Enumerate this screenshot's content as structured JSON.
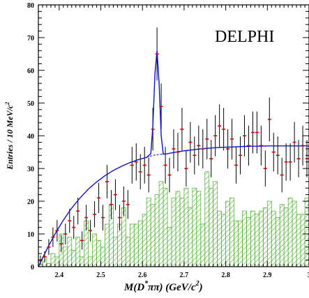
{
  "chart_data": {
    "type": "histogram",
    "experiment_label": "DELPHI",
    "ylabel_main": "Entries / 10 MeV/c",
    "ylabel_sup": "2",
    "xlabel_main": "M(D",
    "xlabel_star": "*",
    "xlabel_tail": "ππ)  (GeV/c",
    "xlabel_sup": "2",
    "xlabel_close": ")",
    "xlim": [
      2.35,
      3.0
    ],
    "ylim": [
      0,
      80
    ],
    "x_tick_labels": [
      "2.4",
      "2.5",
      "2.6",
      "2.7",
      "2.8",
      "2.9",
      "3"
    ],
    "y_tick_labels": [
      "0",
      "10",
      "20",
      "30",
      "40",
      "50",
      "60",
      "70",
      "80"
    ],
    "bin_width": 0.01,
    "data_points": {
      "name": "data",
      "x": [
        2.355,
        2.365,
        2.375,
        2.385,
        2.395,
        2.405,
        2.415,
        2.425,
        2.435,
        2.445,
        2.455,
        2.465,
        2.475,
        2.485,
        2.495,
        2.505,
        2.515,
        2.525,
        2.535,
        2.545,
        2.555,
        2.565,
        2.575,
        2.585,
        2.595,
        2.605,
        2.615,
        2.625,
        2.635,
        2.645,
        2.655,
        2.665,
        2.675,
        2.685,
        2.695,
        2.705,
        2.715,
        2.725,
        2.735,
        2.745,
        2.755,
        2.765,
        2.775,
        2.785,
        2.795,
        2.805,
        2.815,
        2.825,
        2.835,
        2.845,
        2.855,
        2.865,
        2.875,
        2.885,
        2.895,
        2.905,
        2.915,
        2.925,
        2.935,
        2.945,
        2.955,
        2.965,
        2.975,
        2.985,
        2.995
      ],
      "y": [
        2,
        3,
        6,
        9,
        11,
        7,
        10,
        14,
        12,
        17,
        8,
        15,
        11,
        16,
        21,
        15,
        26,
        19,
        22,
        15,
        20,
        19,
        31,
        32,
        29,
        31,
        28,
        42,
        65,
        49,
        31,
        28,
        36,
        35,
        42,
        30,
        38,
        34,
        37,
        36,
        39,
        33,
        40,
        43,
        42,
        36,
        39,
        31,
        34,
        40,
        37,
        41,
        41,
        37,
        30,
        45,
        35,
        34,
        28,
        32,
        32,
        38,
        33,
        37,
        33
      ],
      "errors": [
        1.4,
        1.7,
        2.4,
        3.0,
        3.3,
        2.6,
        3.2,
        3.7,
        3.5,
        4.1,
        2.8,
        3.9,
        3.3,
        4.0,
        4.6,
        3.9,
        5.1,
        4.4,
        4.7,
        3.9,
        4.5,
        4.4,
        5.6,
        5.7,
        5.4,
        5.6,
        5.3,
        6.5,
        8.1,
        7.0,
        5.6,
        5.3,
        6.0,
        5.9,
        6.5,
        5.5,
        6.2,
        5.8,
        6.1,
        6.0,
        6.2,
        5.7,
        6.3,
        6.6,
        6.5,
        6.0,
        6.2,
        5.6,
        5.8,
        6.3,
        6.1,
        6.4,
        6.4,
        6.1,
        5.5,
        6.7,
        5.9,
        5.8,
        5.3,
        5.7,
        5.7,
        6.2,
        5.7,
        6.1,
        5.7
      ]
    },
    "background_histogram": {
      "name": "background",
      "x": [
        2.35,
        2.36,
        2.37,
        2.38,
        2.39,
        2.4,
        2.41,
        2.42,
        2.43,
        2.44,
        2.45,
        2.46,
        2.47,
        2.48,
        2.49,
        2.5,
        2.51,
        2.52,
        2.53,
        2.54,
        2.55,
        2.56,
        2.57,
        2.58,
        2.59,
        2.6,
        2.61,
        2.62,
        2.63,
        2.64,
        2.65,
        2.66,
        2.67,
        2.68,
        2.69,
        2.7,
        2.71,
        2.72,
        2.73,
        2.74,
        2.75,
        2.76,
        2.77,
        2.78,
        2.79,
        2.8,
        2.81,
        2.82,
        2.83,
        2.84,
        2.85,
        2.86,
        2.87,
        2.88,
        2.89,
        2.9,
        2.91,
        2.92,
        2.93,
        2.94,
        2.95,
        2.96,
        2.97,
        2.98,
        2.99
      ],
      "values": [
        2,
        3,
        1,
        4,
        3,
        10,
        6,
        9,
        5,
        9,
        3,
        14,
        3,
        10,
        8,
        6,
        13,
        19,
        9,
        13,
        18,
        9,
        13,
        13,
        14,
        16,
        21,
        19,
        22,
        26,
        24,
        12,
        21,
        23,
        21,
        24,
        18,
        24,
        23,
        13,
        29,
        24,
        26,
        17,
        16,
        20,
        21,
        14,
        14,
        17,
        15,
        17,
        16,
        17,
        18,
        20,
        17,
        15,
        19,
        18,
        21,
        20,
        16,
        16,
        21
      ]
    },
    "fit_function": {
      "name": "fit",
      "x": [
        2.35,
        2.37,
        2.39,
        2.41,
        2.43,
        2.45,
        2.47,
        2.49,
        2.51,
        2.53,
        2.55,
        2.57,
        2.59,
        2.61,
        2.62,
        2.625,
        2.63,
        2.635,
        2.64,
        2.645,
        2.65,
        2.66,
        2.68,
        2.7,
        2.72,
        2.74,
        2.76,
        2.78,
        2.8,
        2.82,
        2.84,
        2.86,
        2.88,
        2.9,
        2.92,
        2.94,
        2.96,
        2.98,
        3.0
      ],
      "y": [
        0,
        5.2,
        10.0,
        14.2,
        17.9,
        21.0,
        23.7,
        25.9,
        27.8,
        29.4,
        30.7,
        31.8,
        32.7,
        33.4,
        34.5,
        43,
        59,
        66,
        56,
        40,
        34.4,
        34.5,
        35.0,
        35.4,
        35.7,
        36.0,
        36.2,
        36.4,
        36.5,
        36.6,
        36.7,
        36.8,
        36.8,
        36.9,
        36.9,
        36.9,
        36.9,
        36.9,
        36.9
      ]
    },
    "background_curve_dashed": {
      "x": [
        2.61,
        2.62,
        2.63,
        2.64,
        2.65,
        2.66
      ],
      "y": [
        33.4,
        33.8,
        34.1,
        34.3,
        34.4,
        34.5
      ]
    },
    "colors": {
      "data_points": "#d40000",
      "error_bars": "#000000",
      "fit_line": "#1010c8",
      "background_hatch": "#55b536"
    }
  }
}
